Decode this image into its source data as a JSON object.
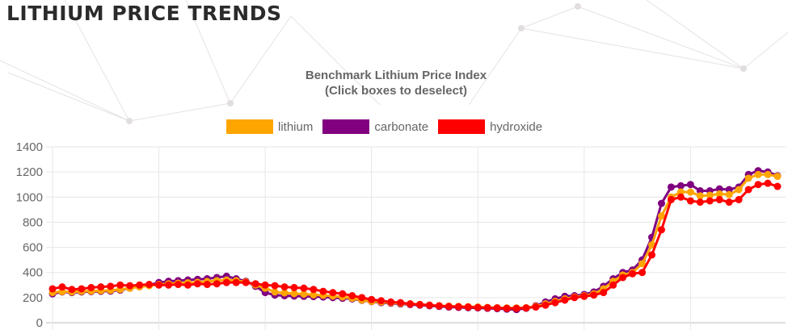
{
  "page_title": "LITHIUM PRICE TRENDS",
  "chart_data": {
    "type": "line",
    "title": "Benchmark Lithium Price Index",
    "subtitle": "(Click boxes to deselect)",
    "xlabel": "",
    "ylabel": "",
    "ylim": [
      0,
      1400
    ],
    "yticks": [
      "0",
      "200",
      "400",
      "600",
      "800",
      "1000",
      "1200",
      "1400"
    ],
    "grid": true,
    "legend_position": "top-center",
    "series": [
      {
        "name": "lithium",
        "color": "#FFA500",
        "values": [
          240,
          248,
          245,
          250,
          252,
          255,
          258,
          265,
          275,
          285,
          295,
          305,
          310,
          315,
          318,
          322,
          328,
          335,
          340,
          335,
          325,
          300,
          275,
          245,
          238,
          232,
          228,
          222,
          218,
          212,
          205,
          195,
          180,
          170,
          165,
          160,
          155,
          150,
          145,
          140,
          135,
          132,
          130,
          128,
          125,
          122,
          120,
          118,
          118,
          120,
          130,
          150,
          170,
          190,
          205,
          215,
          230,
          270,
          330,
          380,
          400,
          470,
          620,
          850,
          1000,
          1040,
          1040,
          1010,
          1015,
          1025,
          1020,
          1060,
          1150,
          1180,
          1180,
          1165
        ]
      },
      {
        "name": "carbonate",
        "color": "#800080",
        "values": [
          230,
          245,
          240,
          245,
          248,
          250,
          252,
          260,
          275,
          290,
          300,
          320,
          330,
          335,
          340,
          345,
          350,
          360,
          370,
          350,
          330,
          290,
          240,
          220,
          215,
          212,
          210,
          208,
          205,
          200,
          195,
          190,
          178,
          168,
          160,
          155,
          150,
          145,
          140,
          135,
          130,
          125,
          122,
          120,
          118,
          115,
          112,
          108,
          105,
          115,
          135,
          165,
          190,
          210,
          215,
          225,
          245,
          290,
          350,
          400,
          420,
          500,
          680,
          950,
          1080,
          1090,
          1100,
          1050,
          1050,
          1065,
          1060,
          1080,
          1180,
          1210,
          1200,
          1170
        ]
      },
      {
        "name": "hydroxide",
        "color": "#FF0000",
        "values": [
          270,
          285,
          265,
          270,
          280,
          285,
          290,
          300,
          295,
          300,
          305,
          300,
          300,
          305,
          300,
          310,
          305,
          310,
          320,
          320,
          320,
          310,
          300,
          295,
          285,
          280,
          275,
          265,
          250,
          240,
          230,
          215,
          200,
          185,
          175,
          165,
          160,
          150,
          145,
          140,
          135,
          130,
          128,
          125,
          122,
          120,
          118,
          115,
          115,
          118,
          125,
          140,
          160,
          180,
          200,
          210,
          220,
          240,
          300,
          360,
          390,
          400,
          540,
          740,
          980,
          1000,
          970,
          960,
          970,
          980,
          960,
          980,
          1060,
          1100,
          1110,
          1085
        ]
      }
    ]
  }
}
